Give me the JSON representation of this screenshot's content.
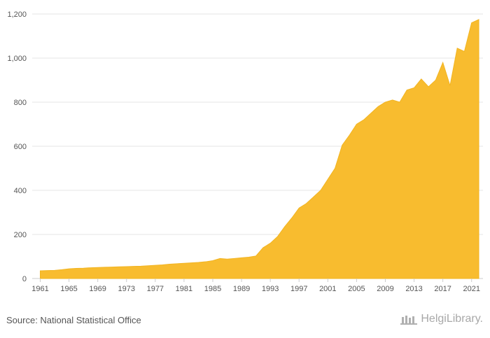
{
  "chart_data": {
    "type": "area",
    "title": "",
    "xlabel": "",
    "ylabel": "",
    "ylim": [
      0,
      1200
    ],
    "yticks": [
      0,
      200,
      400,
      600,
      800,
      1000,
      1200
    ],
    "ytick_labels": [
      "0",
      "200",
      "400",
      "600",
      "800",
      "1,000",
      "1,200"
    ],
    "xticks": [
      1961,
      1965,
      1969,
      1973,
      1977,
      1981,
      1985,
      1989,
      1993,
      1997,
      2001,
      2005,
      2009,
      2013,
      2017,
      2021
    ],
    "xtick_labels": [
      "1961",
      "1965",
      "1969",
      "1973",
      "1977",
      "1981",
      "1985",
      "1989",
      "1993",
      "1997",
      "2001",
      "2005",
      "2009",
      "2013",
      "2017",
      "2021"
    ],
    "grid": true,
    "color": "#F8BC2F",
    "x": [
      1961,
      1962,
      1963,
      1964,
      1965,
      1966,
      1967,
      1968,
      1969,
      1970,
      1971,
      1972,
      1973,
      1974,
      1975,
      1976,
      1977,
      1978,
      1979,
      1980,
      1981,
      1982,
      1983,
      1984,
      1985,
      1986,
      1987,
      1988,
      1989,
      1990,
      1991,
      1992,
      1993,
      1994,
      1995,
      1996,
      1997,
      1998,
      1999,
      2000,
      2001,
      2002,
      2003,
      2004,
      2005,
      2006,
      2007,
      2008,
      2009,
      2010,
      2011,
      2012,
      2013,
      2014,
      2015,
      2016,
      2017,
      2018,
      2019,
      2020,
      2021,
      2022
    ],
    "values": [
      35,
      36,
      37,
      40,
      44,
      46,
      47,
      49,
      50,
      51,
      52,
      53,
      54,
      55,
      56,
      58,
      60,
      62,
      65,
      67,
      69,
      71,
      73,
      76,
      81,
      91,
      88,
      91,
      94,
      97,
      102,
      140,
      160,
      190,
      235,
      275,
      320,
      340,
      370,
      400,
      450,
      500,
      605,
      650,
      700,
      720,
      750,
      780,
      800,
      810,
      800,
      855,
      865,
      905,
      870,
      900,
      980,
      875,
      1045,
      1030,
      1160,
      1175
    ]
  },
  "footer": {
    "source": "Source: National Statistical Office",
    "brand": "HelgiLibrary."
  }
}
